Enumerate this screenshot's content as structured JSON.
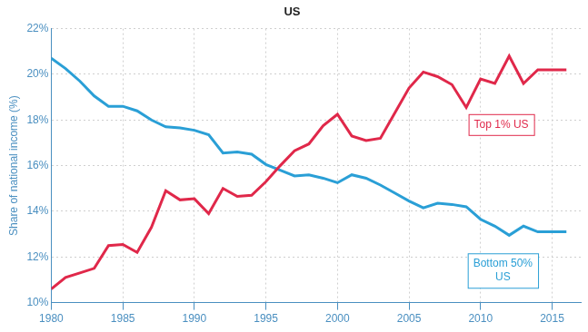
{
  "chart_data": {
    "type": "line",
    "title": "US",
    "y_label": "Share of national income (%)",
    "x": [
      1980,
      1981,
      1982,
      1983,
      1984,
      1985,
      1986,
      1987,
      1988,
      1989,
      1990,
      1991,
      1992,
      1993,
      1994,
      1995,
      1996,
      1997,
      1998,
      1999,
      2000,
      2001,
      2002,
      2003,
      2004,
      2005,
      2006,
      2007,
      2008,
      2009,
      2010,
      2011,
      2012,
      2013,
      2014,
      2015,
      2016
    ],
    "series": [
      {
        "name": "Top 1% US",
        "color": "#e0284a",
        "values": [
          10.6,
          11.1,
          11.3,
          11.5,
          12.5,
          12.55,
          12.2,
          13.3,
          14.9,
          14.5,
          14.55,
          13.9,
          15.0,
          14.65,
          14.7,
          15.3,
          16.0,
          16.65,
          16.95,
          17.75,
          18.25,
          17.3,
          17.1,
          17.2,
          18.3,
          19.4,
          20.1,
          19.9,
          19.55,
          18.55,
          19.8,
          19.6,
          20.8,
          19.6,
          20.2,
          20.2,
          20.2
        ]
      },
      {
        "name": "Bottom 50%\nUS",
        "color": "#2a9fd6",
        "values": [
          20.7,
          20.25,
          19.7,
          19.05,
          18.6,
          18.6,
          18.4,
          18.0,
          17.7,
          17.65,
          17.55,
          17.35,
          16.55,
          16.6,
          16.5,
          16.05,
          15.8,
          15.55,
          15.6,
          15.45,
          15.25,
          15.6,
          15.45,
          15.15,
          14.8,
          14.45,
          14.15,
          14.35,
          14.3,
          14.2,
          13.65,
          13.35,
          12.95,
          13.35,
          13.1,
          13.1,
          13.1
        ]
      }
    ],
    "xlim": [
      1980,
      2017
    ],
    "xticks": [
      1980,
      1985,
      1990,
      1995,
      2000,
      2005,
      2010,
      2015
    ],
    "ylim": [
      10,
      22
    ],
    "yticks": [
      {
        "value": 10,
        "label": "10%"
      },
      {
        "value": 12,
        "label": "12%"
      },
      {
        "value": 14,
        "label": "14%"
      },
      {
        "value": 16,
        "label": "16%"
      },
      {
        "value": 18,
        "label": "18%"
      },
      {
        "value": 20,
        "label": "20%"
      },
      {
        "value": 22,
        "label": "22%"
      }
    ],
    "grid": true
  }
}
